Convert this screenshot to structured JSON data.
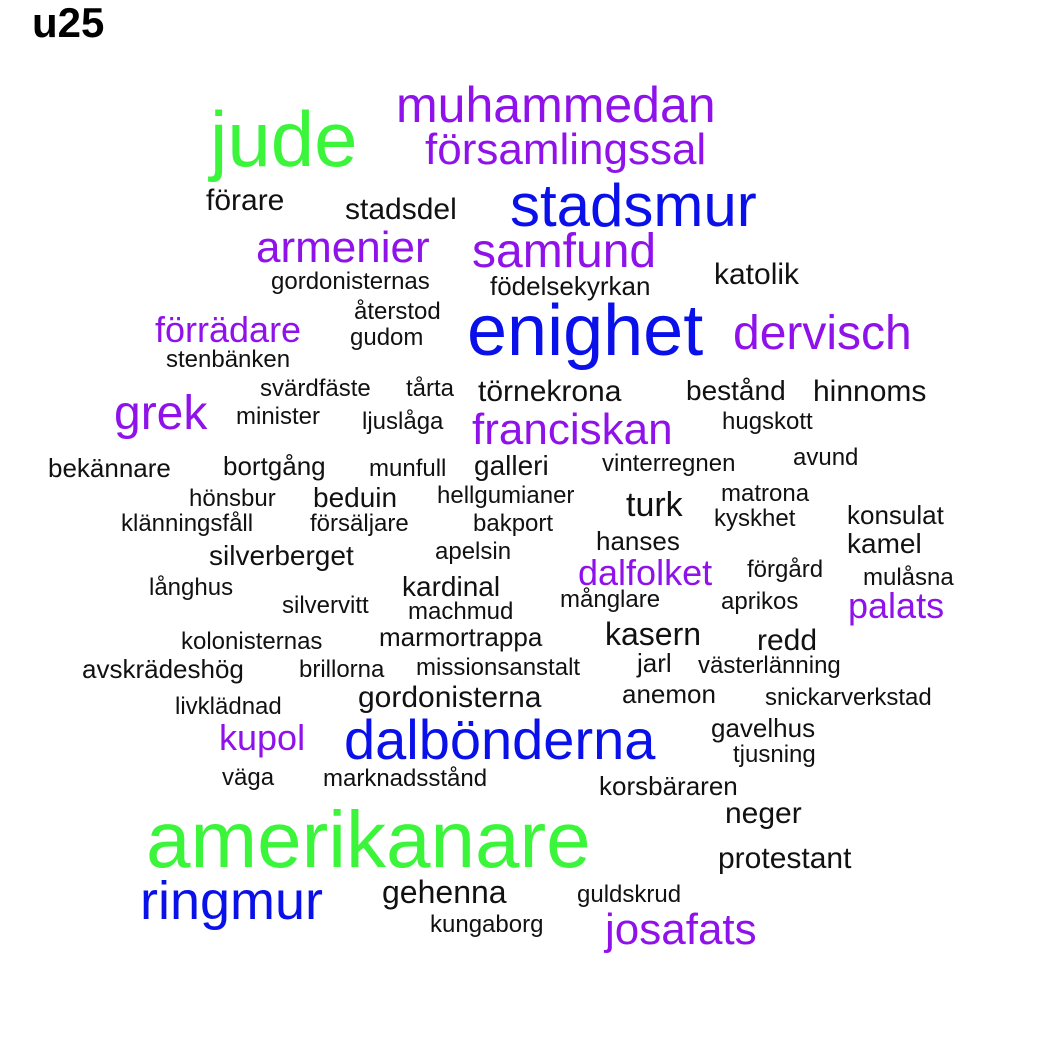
{
  "title": "u25",
  "colors": {
    "green": "#3bf53b",
    "blue": "#0a10ea",
    "purple": "#9012ea",
    "black": "#111111"
  },
  "words": [
    {
      "text": "jude",
      "color": "green"
    },
    {
      "text": "muhammedan",
      "color": "purple"
    },
    {
      "text": "församlingssal",
      "color": "purple"
    },
    {
      "text": "förare",
      "color": "black"
    },
    {
      "text": "stadsdel",
      "color": "black"
    },
    {
      "text": "stadsmur",
      "color": "blue"
    },
    {
      "text": "armenier",
      "color": "purple"
    },
    {
      "text": "samfund",
      "color": "purple"
    },
    {
      "text": "gordonisternas",
      "color": "black"
    },
    {
      "text": "födelsekyrkan",
      "color": "black"
    },
    {
      "text": "katolik",
      "color": "black"
    },
    {
      "text": "återstod",
      "color": "black"
    },
    {
      "text": "förrädare",
      "color": "purple"
    },
    {
      "text": "gudom",
      "color": "black"
    },
    {
      "text": "enighet",
      "color": "blue"
    },
    {
      "text": "dervisch",
      "color": "purple"
    },
    {
      "text": "stenbänken",
      "color": "black"
    },
    {
      "text": "svärdfäste",
      "color": "black"
    },
    {
      "text": "tårta",
      "color": "black"
    },
    {
      "text": "törnekrona",
      "color": "black"
    },
    {
      "text": "bestånd",
      "color": "black"
    },
    {
      "text": "hinnoms",
      "color": "black"
    },
    {
      "text": "grek",
      "color": "purple"
    },
    {
      "text": "minister",
      "color": "black"
    },
    {
      "text": "ljuslåga",
      "color": "black"
    },
    {
      "text": "franciskan",
      "color": "purple"
    },
    {
      "text": "hugskott",
      "color": "black"
    },
    {
      "text": "bekännare",
      "color": "black"
    },
    {
      "text": "bortgång",
      "color": "black"
    },
    {
      "text": "munfull",
      "color": "black"
    },
    {
      "text": "galleri",
      "color": "black"
    },
    {
      "text": "vinterregnen",
      "color": "black"
    },
    {
      "text": "avund",
      "color": "black"
    },
    {
      "text": "hönsbur",
      "color": "black"
    },
    {
      "text": "beduin",
      "color": "black"
    },
    {
      "text": "hellgumianer",
      "color": "black"
    },
    {
      "text": "turk",
      "color": "black"
    },
    {
      "text": "matrona",
      "color": "black"
    },
    {
      "text": "klänningsfåll",
      "color": "black"
    },
    {
      "text": "försäljare",
      "color": "black"
    },
    {
      "text": "bakport",
      "color": "black"
    },
    {
      "text": "kyskhet",
      "color": "black"
    },
    {
      "text": "konsulat",
      "color": "black"
    },
    {
      "text": "silverberget",
      "color": "black"
    },
    {
      "text": "apelsin",
      "color": "black"
    },
    {
      "text": "hanses",
      "color": "black"
    },
    {
      "text": "kamel",
      "color": "black"
    },
    {
      "text": "dalfolket",
      "color": "purple"
    },
    {
      "text": "förgård",
      "color": "black"
    },
    {
      "text": "mulåsna",
      "color": "black"
    },
    {
      "text": "långhus",
      "color": "black"
    },
    {
      "text": "kardinal",
      "color": "black"
    },
    {
      "text": "silvervitt",
      "color": "black"
    },
    {
      "text": "månglare",
      "color": "black"
    },
    {
      "text": "aprikos",
      "color": "black"
    },
    {
      "text": "palats",
      "color": "purple"
    },
    {
      "text": "machmud",
      "color": "black"
    },
    {
      "text": "kolonisternas",
      "color": "black"
    },
    {
      "text": "marmortrappa",
      "color": "black"
    },
    {
      "text": "kasern",
      "color": "black"
    },
    {
      "text": "redd",
      "color": "black"
    },
    {
      "text": "avskrädeshög",
      "color": "black"
    },
    {
      "text": "brillorna",
      "color": "black"
    },
    {
      "text": "missionsanstalt",
      "color": "black"
    },
    {
      "text": "jarl",
      "color": "black"
    },
    {
      "text": "västerlänning",
      "color": "black"
    },
    {
      "text": "gordonisterna",
      "color": "black"
    },
    {
      "text": "anemon",
      "color": "black"
    },
    {
      "text": "snickarverkstad",
      "color": "black"
    },
    {
      "text": "livklädnad",
      "color": "black"
    },
    {
      "text": "kupol",
      "color": "purple"
    },
    {
      "text": "dalbönderna",
      "color": "blue"
    },
    {
      "text": "gavelhus",
      "color": "black"
    },
    {
      "text": "tjusning",
      "color": "black"
    },
    {
      "text": "väga",
      "color": "black"
    },
    {
      "text": "marknadsstånd",
      "color": "black"
    },
    {
      "text": "korsbäraren",
      "color": "black"
    },
    {
      "text": "neger",
      "color": "black"
    },
    {
      "text": "amerikanare",
      "color": "green"
    },
    {
      "text": "protestant",
      "color": "black"
    },
    {
      "text": "ringmur",
      "color": "blue"
    },
    {
      "text": "gehenna",
      "color": "black"
    },
    {
      "text": "guldskrud",
      "color": "black"
    },
    {
      "text": "kungaborg",
      "color": "black"
    },
    {
      "text": "josafats",
      "color": "purple"
    }
  ]
}
